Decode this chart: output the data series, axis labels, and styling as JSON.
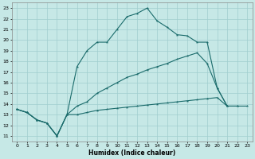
{
  "xlabel": "Humidex (Indice chaleur)",
  "xlim": [
    -0.5,
    23.5
  ],
  "ylim": [
    10.5,
    23.5
  ],
  "xticks": [
    0,
    1,
    2,
    3,
    4,
    5,
    6,
    7,
    8,
    9,
    10,
    11,
    12,
    13,
    14,
    15,
    16,
    17,
    18,
    19,
    20,
    21,
    22,
    23
  ],
  "yticks": [
    11,
    12,
    13,
    14,
    15,
    16,
    17,
    18,
    19,
    20,
    21,
    22,
    23
  ],
  "bg_color": "#c6e8e6",
  "line_color": "#1a6b6b",
  "grid_color": "#a0cece",
  "line1_x": [
    0,
    1,
    2,
    3,
    4,
    5,
    6,
    7,
    8,
    9,
    10,
    11,
    12,
    13,
    14,
    15,
    16,
    17,
    18,
    19,
    20,
    21,
    22
  ],
  "line1_y": [
    13.5,
    13.2,
    12.5,
    12.2,
    11.0,
    13.0,
    17.5,
    19.0,
    19.8,
    19.8,
    21.0,
    22.2,
    22.5,
    23.0,
    21.8,
    21.2,
    20.5,
    20.4,
    19.8,
    19.8,
    15.5,
    13.8,
    13.8
  ],
  "line2_x": [
    0,
    1,
    2,
    3,
    4,
    5,
    6,
    7,
    8,
    9,
    10,
    11,
    12,
    13,
    14,
    15,
    16,
    17,
    18,
    19,
    20,
    21
  ],
  "line2_y": [
    13.5,
    13.2,
    12.5,
    12.2,
    11.0,
    13.0,
    13.8,
    14.2,
    15.0,
    15.5,
    16.0,
    16.5,
    16.8,
    17.2,
    17.5,
    17.8,
    18.2,
    18.5,
    18.8,
    17.8,
    15.5,
    13.8
  ],
  "line3_x": [
    0,
    1,
    2,
    3,
    4,
    5,
    6,
    7,
    8,
    9,
    10,
    11,
    12,
    13,
    14,
    15,
    16,
    17,
    18,
    19,
    20,
    21,
    22,
    23
  ],
  "line3_y": [
    13.5,
    13.2,
    12.5,
    12.2,
    11.0,
    13.0,
    13.0,
    13.2,
    13.4,
    13.5,
    13.6,
    13.7,
    13.8,
    13.9,
    14.0,
    14.1,
    14.2,
    14.3,
    14.4,
    14.5,
    14.6,
    13.8,
    13.8,
    13.8
  ]
}
